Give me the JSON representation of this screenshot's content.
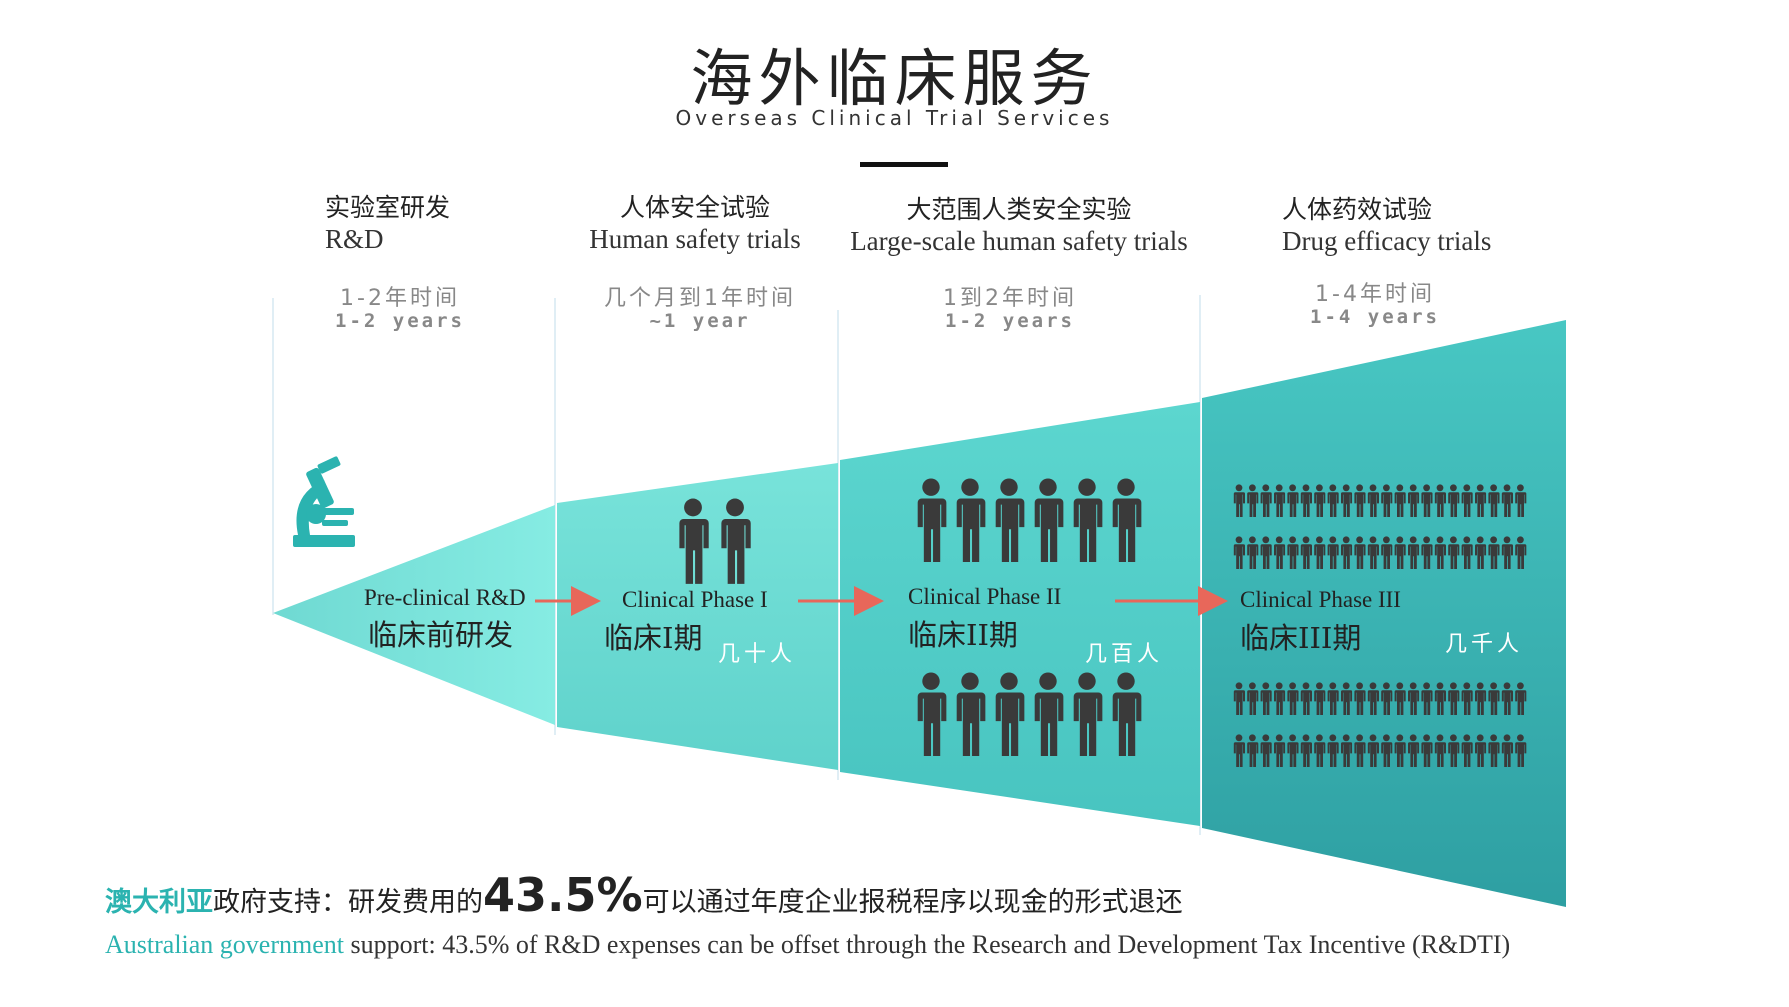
{
  "header": {
    "title_zh": "海外临床服务",
    "title_en": "Overseas Clinical Trial Services"
  },
  "colors": {
    "accent": "#2bb3b0",
    "person": "#3a3a3a",
    "arrow": "#e8675a",
    "funnel_light": "#7de6de",
    "funnel_dark": "#2aa7a8"
  },
  "stages": [
    {
      "title_zh": "实验室研发",
      "title_en": "R&D",
      "duration_zh": "1-2年时间",
      "duration_en": "1-2 years",
      "phase_en": "Pre-clinical R&D",
      "phase_zh": "临床前研发",
      "count": "",
      "icon": "microscope-icon"
    },
    {
      "title_zh": "人体安全试验",
      "title_en": "Human safety trials",
      "duration_zh": "几个月到1年时间",
      "duration_en": "~1 year",
      "phase_en": "Clinical Phase I",
      "phase_zh": "临床I期",
      "count": "几十人"
    },
    {
      "title_zh": "大范围人类安全实验",
      "title_en": "Large-scale human safety trials",
      "duration_zh": "1到2年时间",
      "duration_en": "1-2 years",
      "phase_en": "Clinical Phase II",
      "phase_zh": "临床II期",
      "count": "几百人"
    },
    {
      "title_zh": "人体药效试验",
      "title_en": "Drug efficacy trials",
      "duration_zh": "1-4年时间",
      "duration_en": "1-4 years",
      "phase_en": "Clinical Phase III",
      "phase_zh": "临床III期",
      "count": "几千人"
    }
  ],
  "footer": {
    "zh_highlight": "澳大利亚",
    "zh_part1": "政府支持：研发费用的",
    "zh_percent": "43.5%",
    "zh_part2": "可以通过年度企业报税程序以现金的形式退还",
    "en_highlight": "Australian government",
    "en_rest": " support: 43.5% of R&D expenses can be offset through the Research and Development Tax Incentive (R&DTI)"
  }
}
